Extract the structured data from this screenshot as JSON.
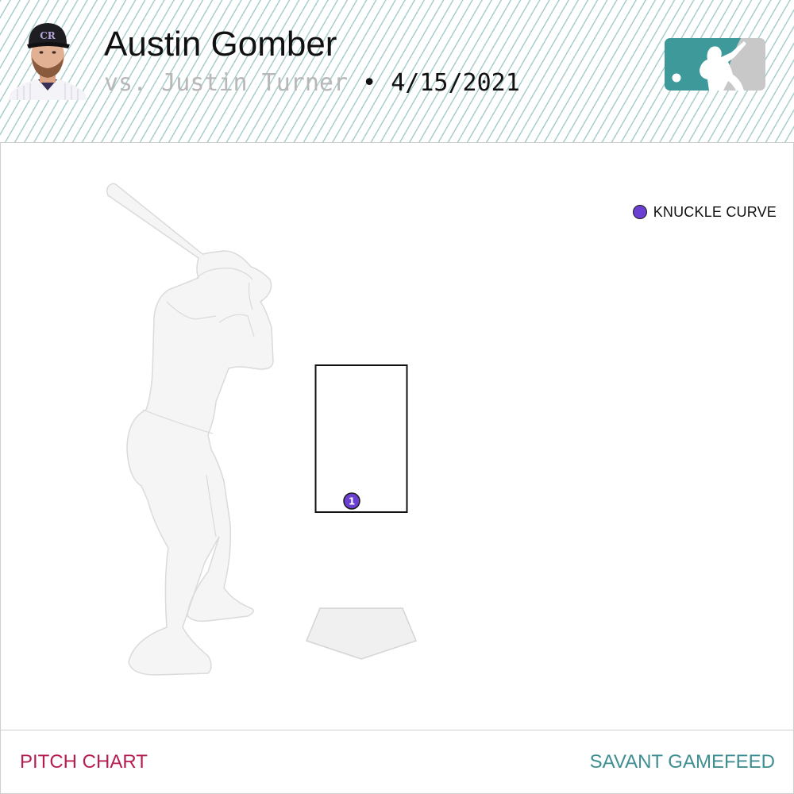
{
  "header": {
    "pitcher_name": "Austin Gomber",
    "batter_text": "vs. Justin Turner",
    "separator": "•",
    "date": "4/15/2021",
    "logo_icon": "mlb-logo-icon",
    "headshot_icon": "player-headshot-icon"
  },
  "legend": {
    "items": [
      {
        "label": "KNUCKLE CURVE",
        "color": "#6a3fd1"
      }
    ]
  },
  "pitches": [
    {
      "number": "1",
      "type": "KNUCKLE CURVE",
      "color": "#6a3fd1"
    }
  ],
  "footer": {
    "left_label": "PITCH CHART",
    "right_label": "SAVANT GAMEFEED"
  },
  "colors": {
    "accent_red": "#b51f4f",
    "accent_teal": "#3e8e92",
    "header_stripe": "#a9cfcc"
  }
}
